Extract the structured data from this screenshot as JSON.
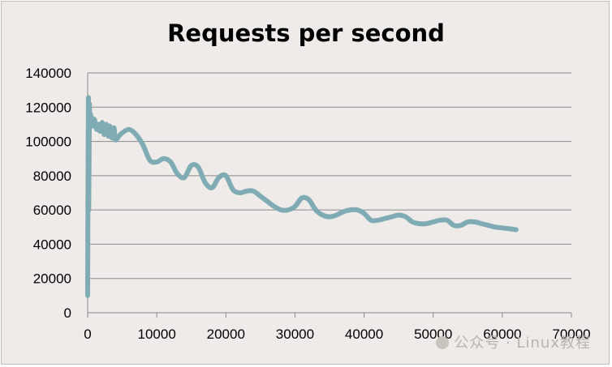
{
  "chart_data": {
    "type": "line",
    "title": "Requests per second",
    "xlabel": "",
    "ylabel": "",
    "xlim": [
      0,
      70000
    ],
    "ylim": [
      0,
      140000
    ],
    "x_ticks": [
      "0",
      "10000",
      "20000",
      "30000",
      "40000",
      "50000",
      "60000",
      "70000"
    ],
    "y_ticks": [
      "0",
      "20000",
      "40000",
      "60000",
      "80000",
      "100000",
      "120000",
      "140000"
    ],
    "grid": "horizontal",
    "legend": "none",
    "line_color": "#7fabb5",
    "series": [
      {
        "x": [
          0,
          100,
          150,
          250,
          300,
          400,
          500,
          600,
          700,
          900,
          1100,
          1300,
          1500,
          1800,
          2100,
          2400,
          2700,
          3000,
          3200,
          3500,
          3800,
          4000,
          4500,
          5000,
          6000,
          7000,
          8000,
          9000,
          10000,
          11000,
          12000,
          13000,
          14000,
          15000,
          16000,
          17000,
          18000,
          19000,
          20000,
          21000,
          22000,
          23000,
          24000,
          25000,
          26000,
          27000,
          28000,
          29000,
          30000,
          31000,
          32000,
          33000,
          34000,
          35000,
          36000,
          37000,
          38000,
          39000,
          40000,
          41000,
          42000,
          43000,
          44000,
          45000,
          46000,
          47000,
          48000,
          49000,
          50000,
          51000,
          52000,
          53000,
          54000,
          55000,
          56000,
          57000,
          58000,
          59000,
          60000,
          61000,
          62000
        ],
        "y": [
          10000,
          125000,
          60000,
          120000,
          108000,
          116000,
          110000,
          114000,
          109000,
          113000,
          111000,
          107000,
          110000,
          106000,
          111000,
          104000,
          110000,
          103000,
          109000,
          102000,
          108000,
          101000,
          103000,
          105000,
          107000,
          104000,
          98000,
          89000,
          88000,
          90000,
          88000,
          81000,
          79000,
          86000,
          85000,
          76000,
          73000,
          79000,
          80000,
          72000,
          70000,
          71000,
          71000,
          68000,
          65000,
          62000,
          60000,
          60000,
          62000,
          67000,
          66000,
          60000,
          57000,
          56000,
          57000,
          59000,
          60000,
          60000,
          58000,
          54000,
          54000,
          55000,
          56000,
          57000,
          56000,
          53000,
          52000,
          52000,
          53000,
          54000,
          54000,
          51000,
          51000,
          53000,
          53000,
          52000,
          51000,
          50000,
          49500,
          49000,
          48500
        ]
      }
    ]
  },
  "watermark": {
    "text": "公众号 · Linux教程"
  }
}
